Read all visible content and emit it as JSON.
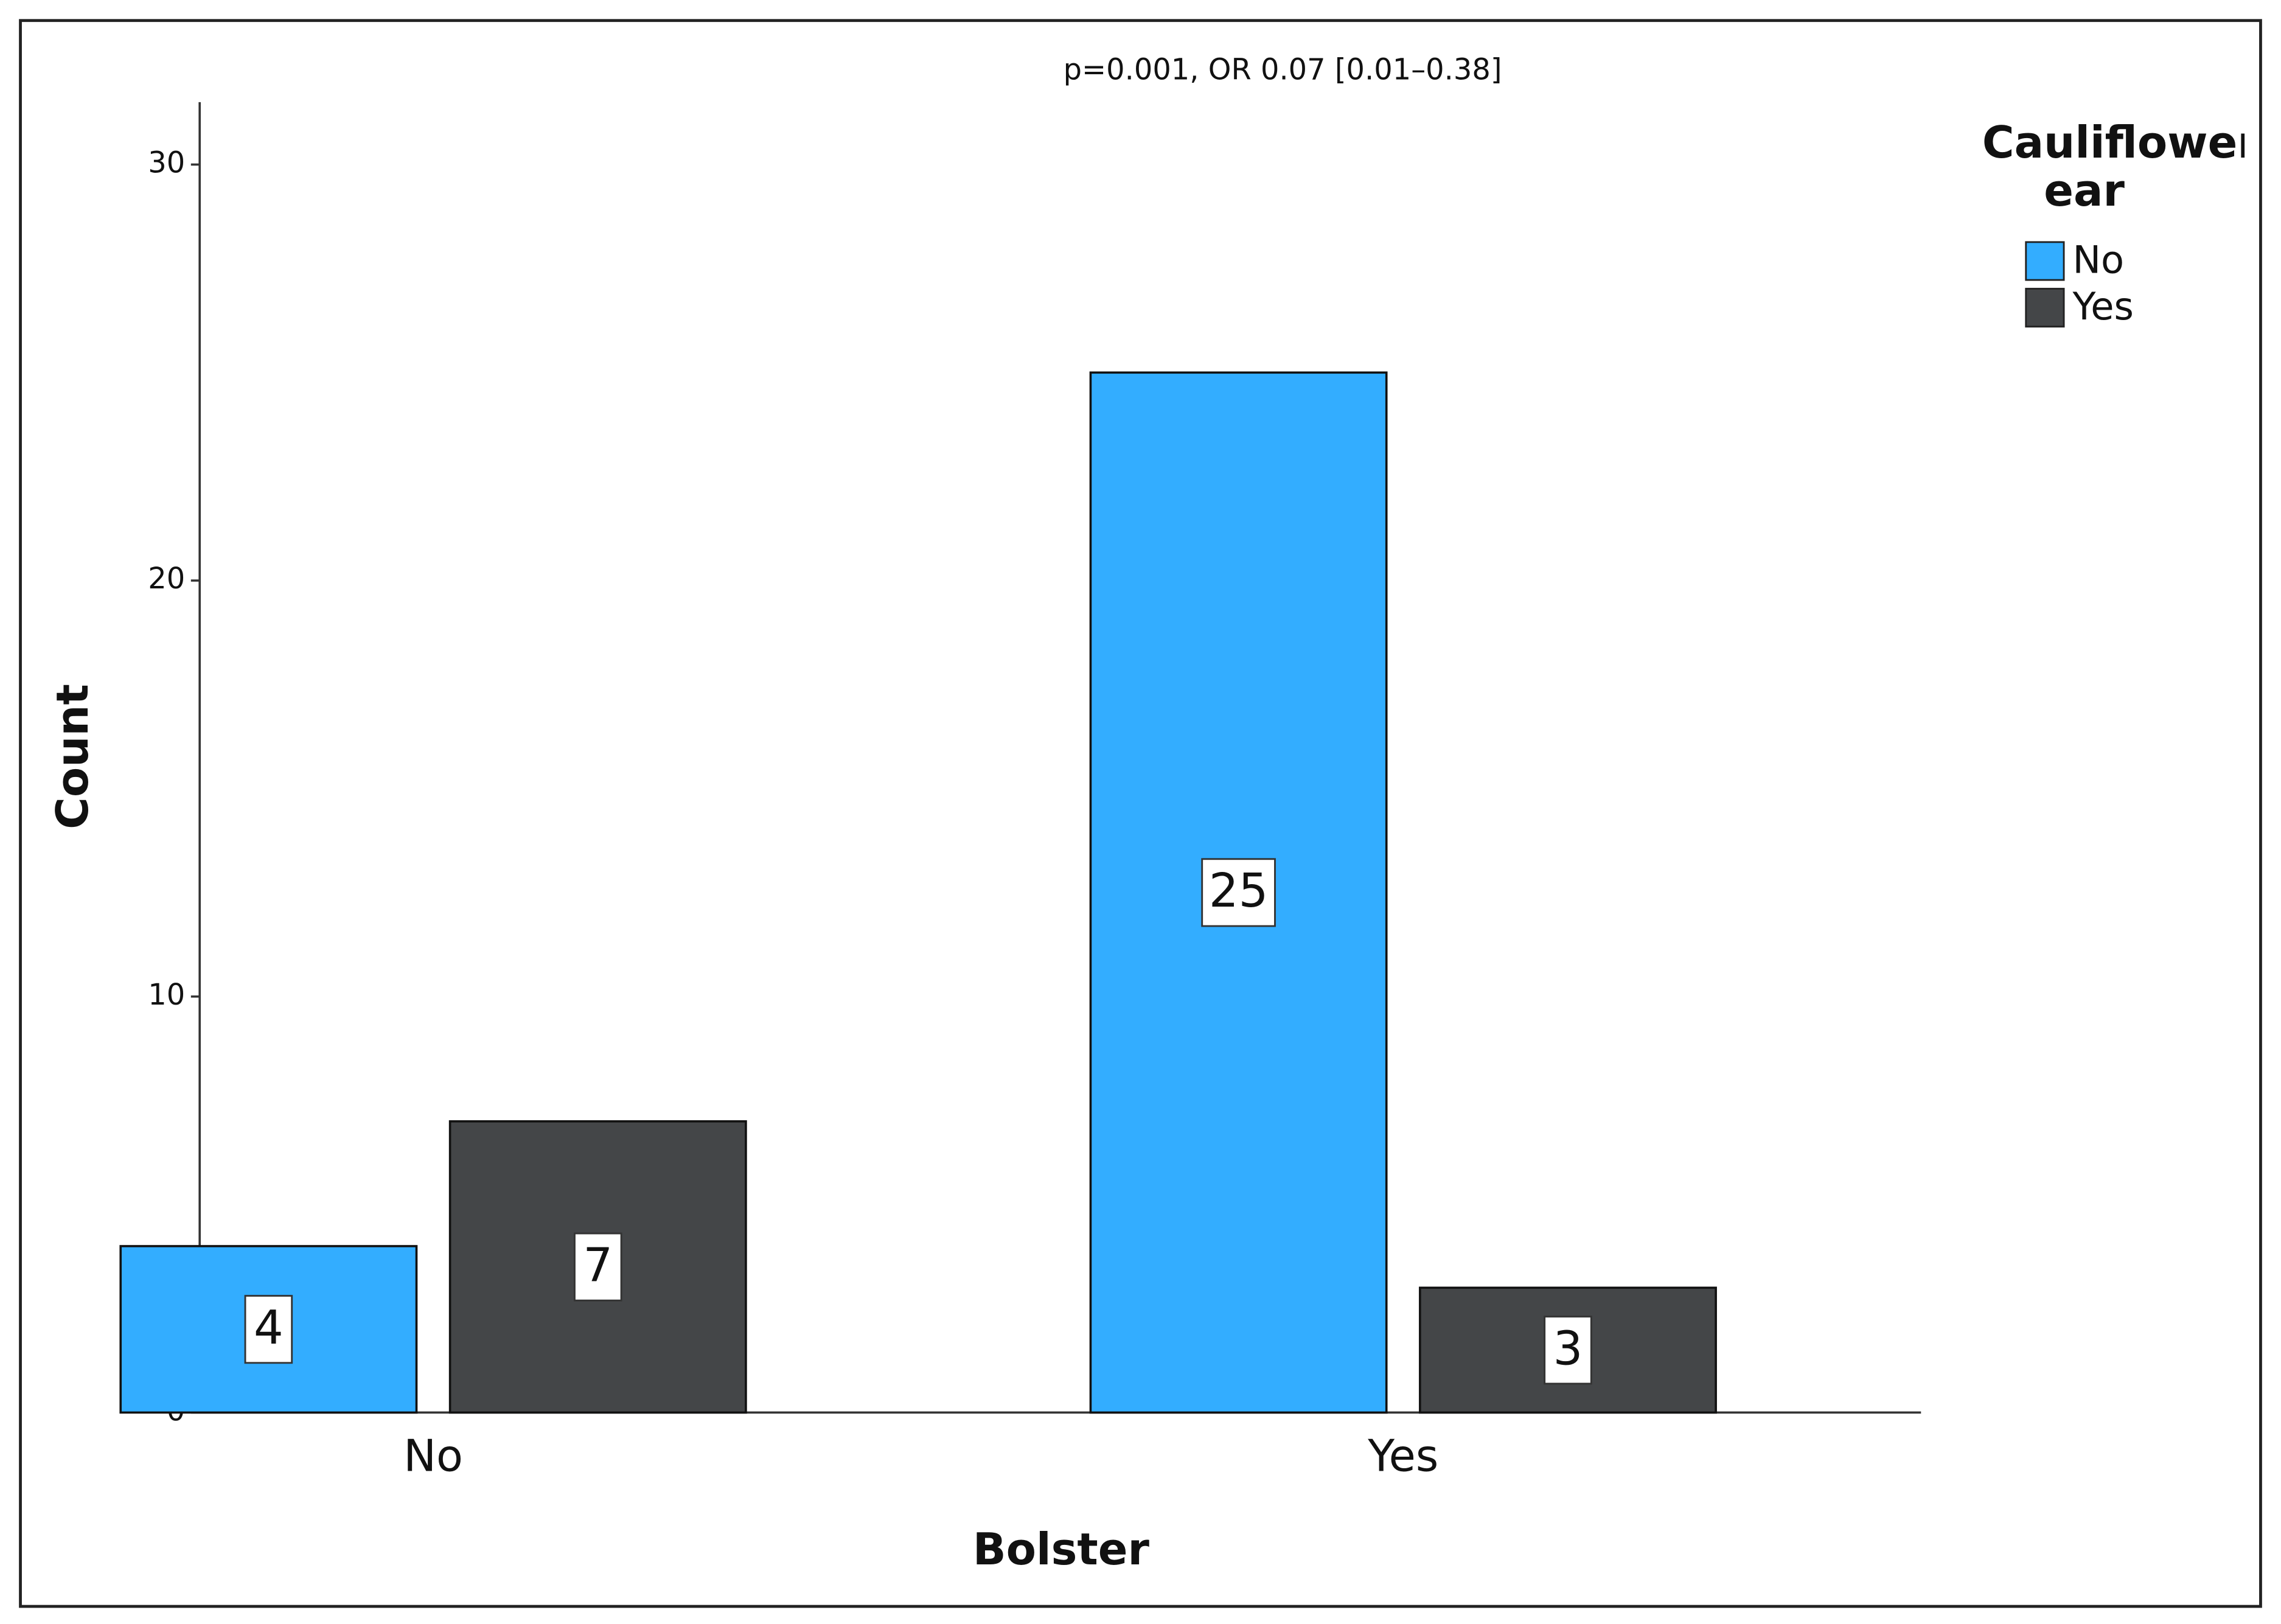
{
  "chart_data": {
    "type": "bar",
    "title": "p=0.001, OR 0.07 [0.01–0.38]",
    "x_label": "Bolster",
    "y_label": "Count",
    "legend_title": "Cauliflower ear",
    "categories": [
      "No",
      "Yes"
    ],
    "series": [
      {
        "name": "No",
        "color": "#33adff",
        "values": [
          4,
          25
        ]
      },
      {
        "name": "Yes",
        "color": "#444648",
        "values": [
          7,
          3
        ]
      }
    ],
    "ylim": [
      0,
      31.5
    ],
    "yticks": [
      0,
      10,
      20,
      30
    ],
    "grid": false,
    "legend": "top-right"
  }
}
